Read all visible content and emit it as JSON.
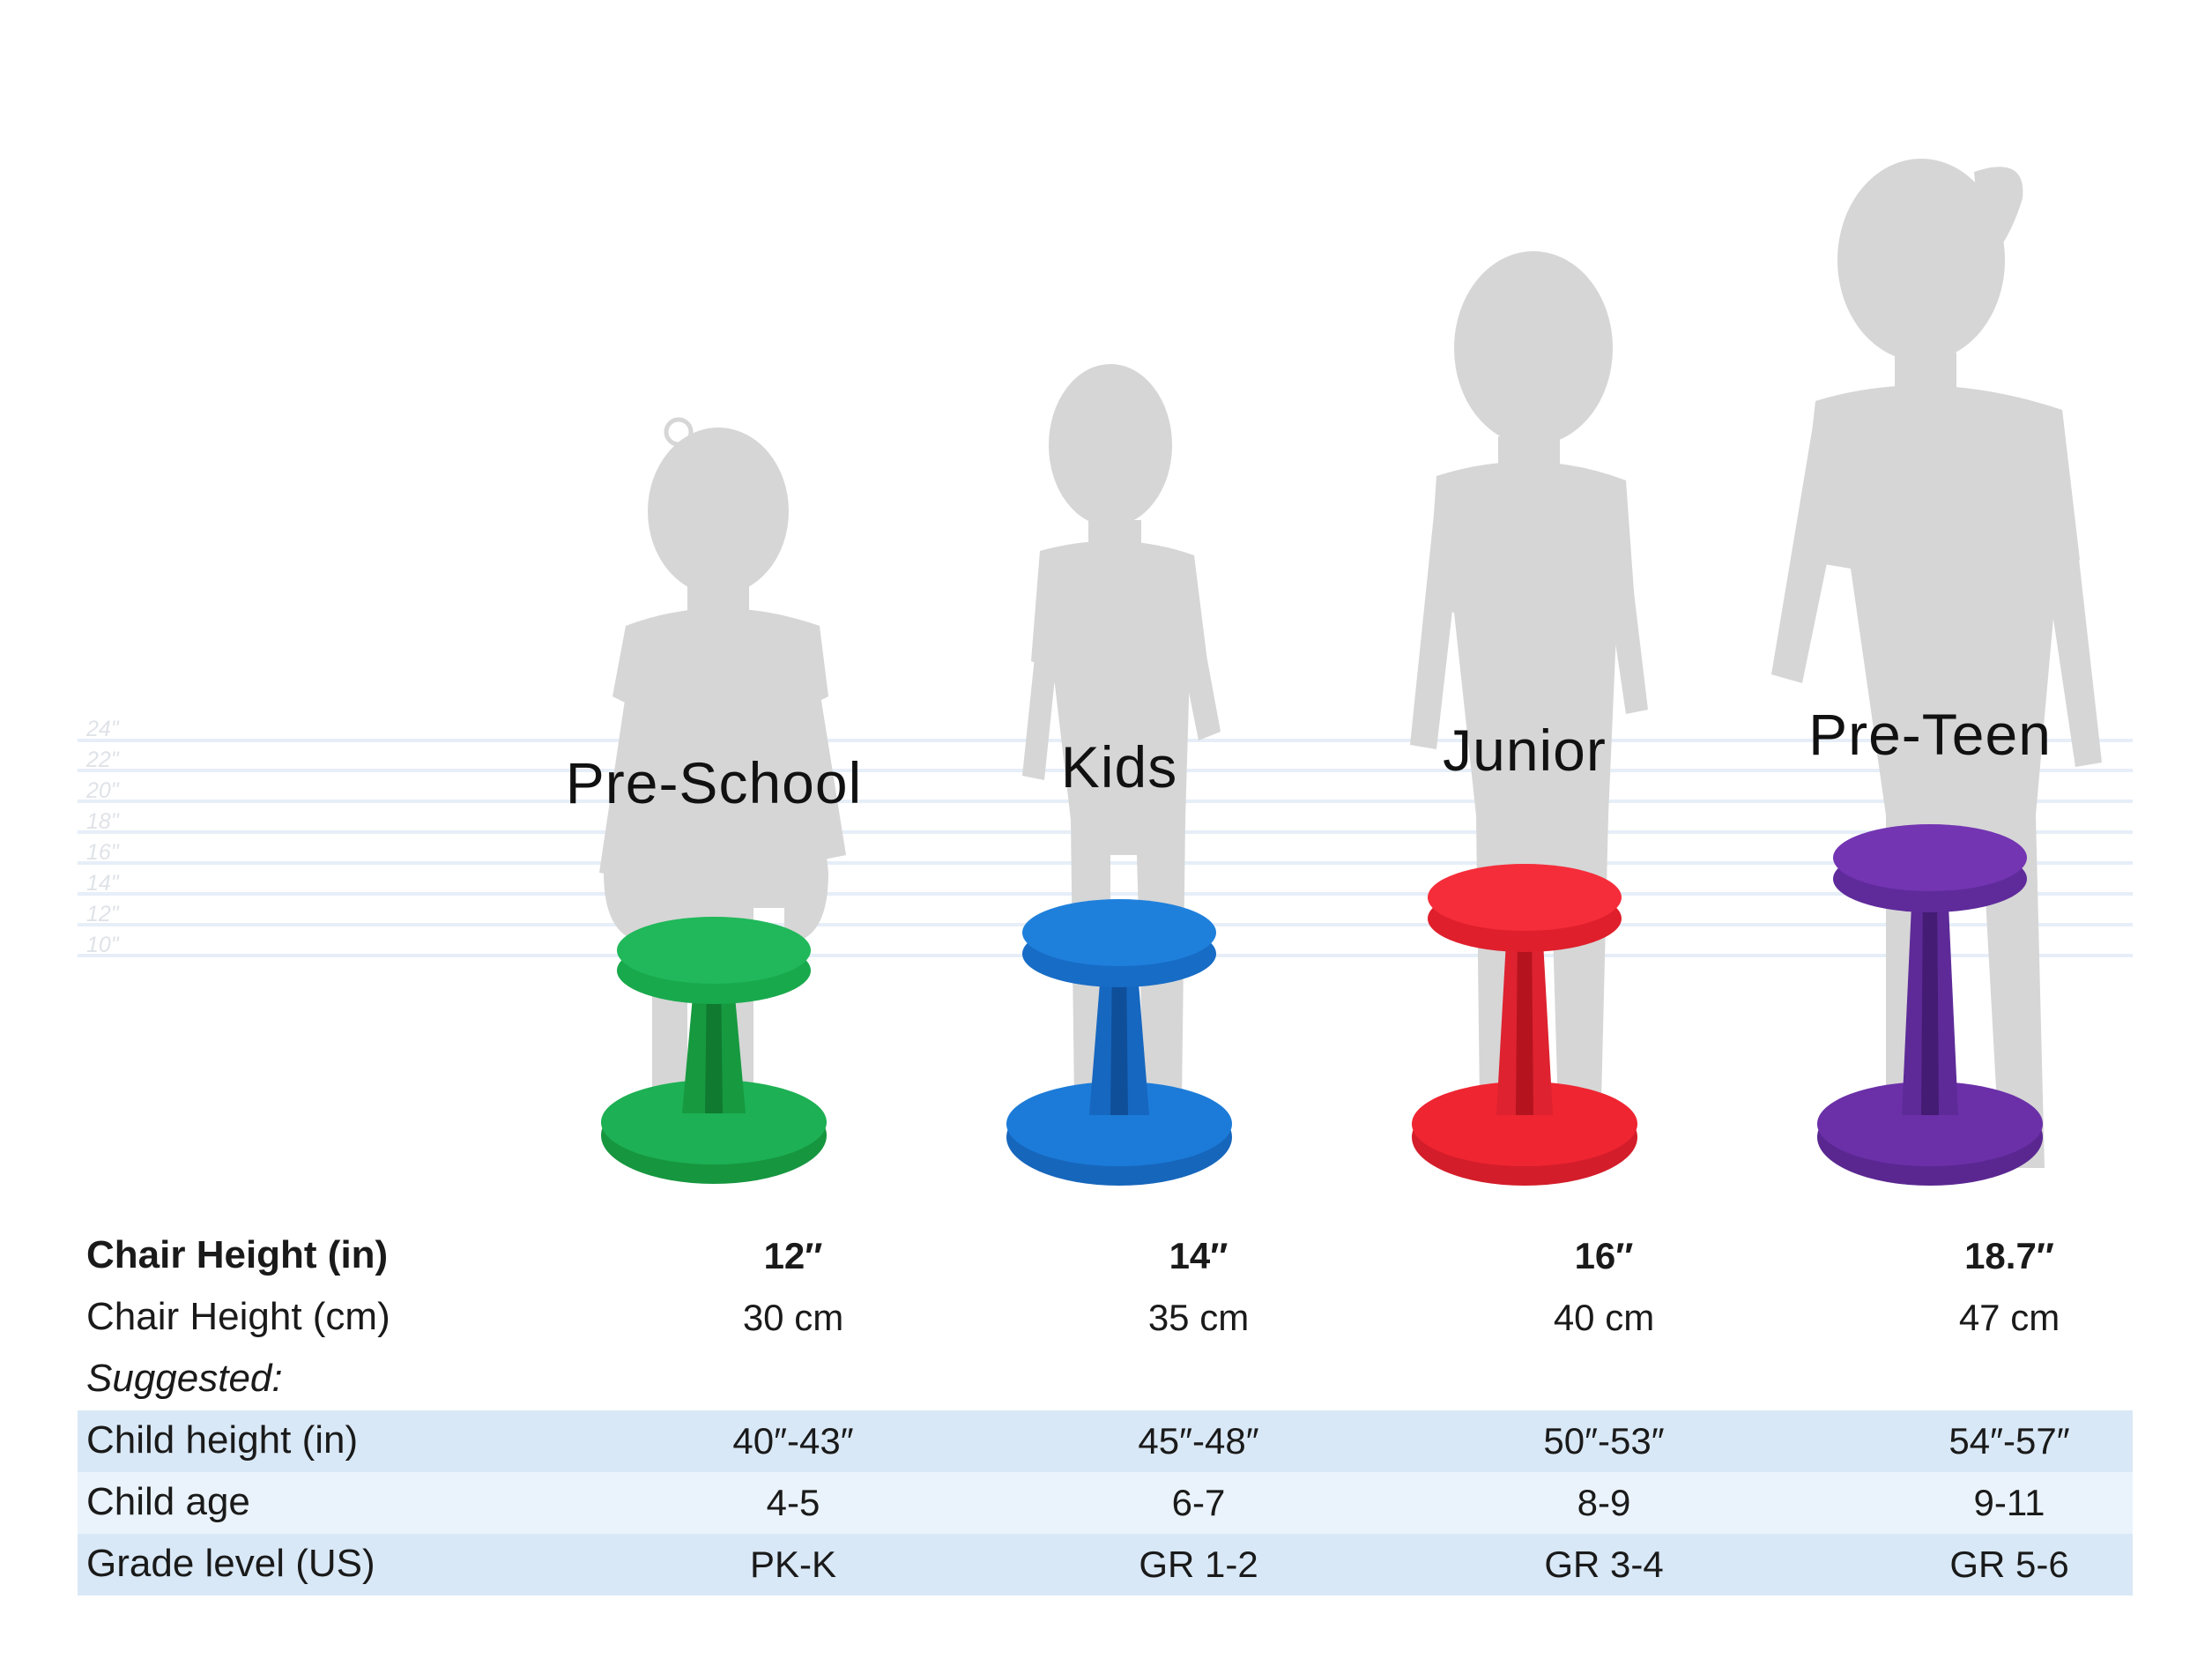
{
  "ruler": {
    "ticks": [
      "24\"",
      "22\"",
      "20\"",
      "18\"",
      "16\"",
      "14\"",
      "12\"",
      "10\""
    ]
  },
  "colors": {
    "silhouette": "#d6d6d6",
    "pre_school": "#19a94d",
    "kids": "#1b78d6",
    "junior": "#ef2532",
    "pre_teen": "#6a2fa6",
    "band_dark": "#d9e8f6",
    "band_light": "#eaf3fb"
  },
  "models": [
    {
      "name": "Pre-School",
      "height_in": "12″",
      "height_cm": "30 cm",
      "child_height": "40″-43″",
      "child_age": "4-5",
      "grade": "PK-K"
    },
    {
      "name": "Kids",
      "height_in": "14″",
      "height_cm": "35 cm",
      "child_height": "45″-48″",
      "child_age": "6-7",
      "grade": "GR 1-2"
    },
    {
      "name": "Junior",
      "height_in": "16″",
      "height_cm": "40 cm",
      "child_height": "50″-53″",
      "child_age": "8-9",
      "grade": "GR 3-4"
    },
    {
      "name": "Pre-Teen",
      "height_in": "18.7″",
      "height_cm": "47 cm",
      "child_height": "54″-57″",
      "child_age": "9-11",
      "grade": "GR 5-6"
    }
  ],
  "labels": {
    "chair_height_in": "Chair Height (in)",
    "chair_height_cm": "Chair Height (cm)",
    "suggested": "Suggested:",
    "child_height": "Child height (in)",
    "child_age": "Child age",
    "grade_level": "Grade level (US)"
  }
}
